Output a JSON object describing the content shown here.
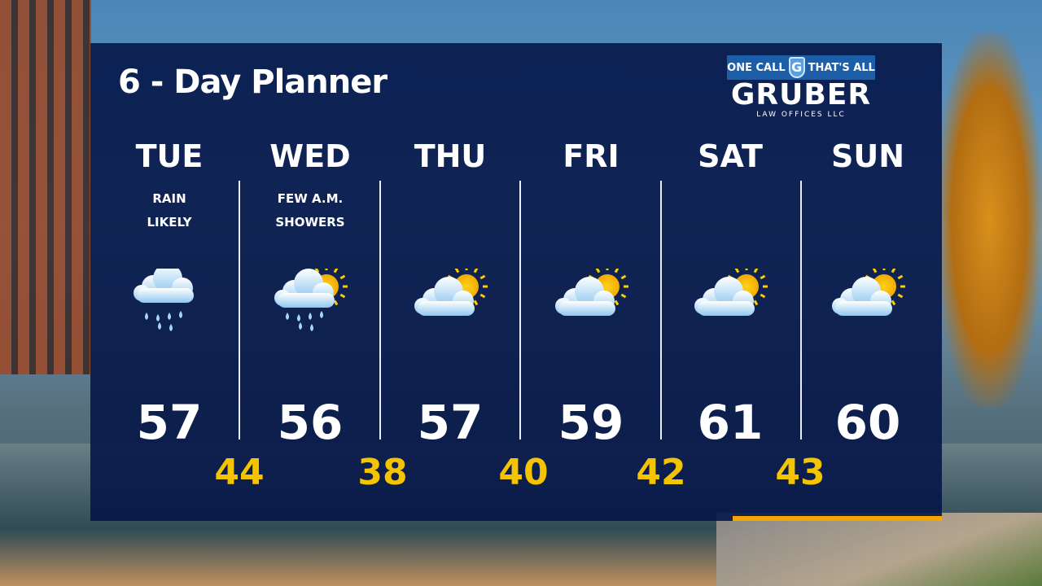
{
  "title": "6 - Day Planner",
  "sponsor": {
    "tagline_left": "ONE CALL",
    "shield_letter": "G",
    "tagline_right": "THAT'S ALL",
    "name": "GRUBER",
    "sub": "LAW OFFICES LLC"
  },
  "colors": {
    "panel": "#061648",
    "low_temp": "#f5c400",
    "accent_bar": "#f5a400"
  },
  "days": [
    {
      "day": "TUE",
      "cond1": "RAIN",
      "cond2": "LIKELY",
      "icon": "rain-cloud-icon",
      "high": "57"
    },
    {
      "day": "WED",
      "cond1": "FEW A.M.",
      "cond2": "SHOWERS",
      "icon": "sun-rain-cloud-icon",
      "high": "56"
    },
    {
      "day": "THU",
      "cond1": "",
      "cond2": "",
      "icon": "partly-sunny-icon",
      "high": "57"
    },
    {
      "day": "FRI",
      "cond1": "",
      "cond2": "",
      "icon": "partly-sunny-icon",
      "high": "59"
    },
    {
      "day": "SAT",
      "cond1": "",
      "cond2": "",
      "icon": "partly-sunny-icon",
      "high": "61"
    },
    {
      "day": "SUN",
      "cond1": "",
      "cond2": "",
      "icon": "partly-sunny-icon",
      "high": "60"
    }
  ],
  "lows": [
    "44",
    "38",
    "40",
    "42",
    "43"
  ]
}
